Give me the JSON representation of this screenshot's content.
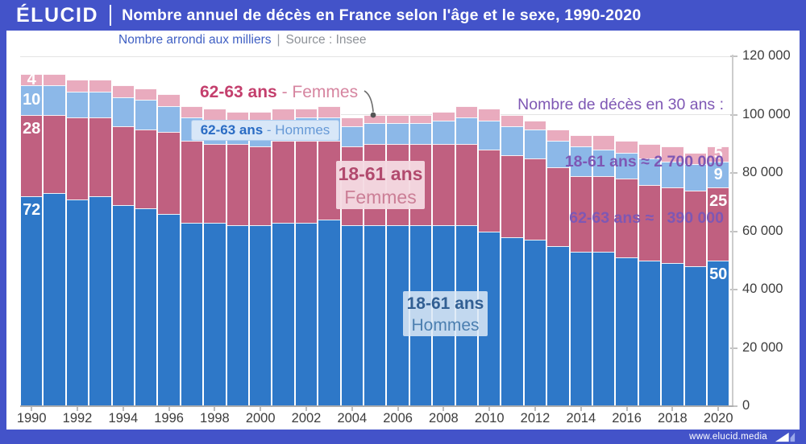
{
  "header": {
    "logo": "ÉLUCID",
    "title": "Nombre annuel de décès en France selon l'âge et le sexe, 1990-2020"
  },
  "subtitle": {
    "note": "Nombre arrondi aux milliers",
    "sep": "|",
    "source": "Source : Insee"
  },
  "labels": {
    "f6263_bold": "62-63 ans",
    "f6263_rest": " - Femmes",
    "h6263_bold": "62-63 ans",
    "h6263_rest": " - Hommes",
    "f1861_line1": "18-61 ans",
    "f1861_line2": "Femmes",
    "h1861_line1": "18-61 ans",
    "h1861_line2": "Hommes"
  },
  "annotation": {
    "line1": "Nombre de décès en 30 ans :",
    "line2": "18-61 ans ≈ 2 700 000",
    "line3": "62-63 ans ≈   390 000"
  },
  "footer": {
    "url": "www.elucid.media"
  },
  "colors": {
    "frame": "#4353c9",
    "hommes_18_61": "#2e78c8",
    "femmes_18_61": "#c06080",
    "hommes_62_63": "#8cb8e8",
    "femmes_62_63": "#e9abbe",
    "annotation_purple": "#7e57b4"
  },
  "chart_data": {
    "type": "bar",
    "stacked": true,
    "title": "Nombre annuel de décès en France selon l'âge et le sexe, 1990-2020",
    "values_unit": "milliers de décès",
    "x": [
      1990,
      1991,
      1992,
      1993,
      1994,
      1995,
      1996,
      1997,
      1998,
      1999,
      2000,
      2001,
      2002,
      2003,
      2004,
      2005,
      2006,
      2007,
      2008,
      2009,
      2010,
      2011,
      2012,
      2013,
      2014,
      2015,
      2016,
      2017,
      2018,
      2019,
      2020
    ],
    "series": [
      {
        "name": "18-61 ans - Hommes",
        "color": "#2e78c8",
        "values": [
          72,
          73,
          71,
          72,
          69,
          68,
          66,
          63,
          63,
          62,
          62,
          63,
          63,
          64,
          62,
          62,
          62,
          62,
          62,
          62,
          60,
          58,
          57,
          55,
          53,
          53,
          51,
          50,
          49,
          48,
          50
        ]
      },
      {
        "name": "18-61 ans - Femmes",
        "color": "#c06080",
        "values": [
          28,
          27,
          28,
          27,
          27,
          27,
          28,
          28,
          27,
          28,
          27,
          28,
          28,
          27,
          27,
          28,
          28,
          28,
          28,
          28,
          28,
          28,
          28,
          27,
          26,
          26,
          27,
          26,
          26,
          26,
          25
        ]
      },
      {
        "name": "62-63 ans - Hommes",
        "color": "#8cb8e8",
        "values": [
          10,
          10,
          9,
          9,
          10,
          10,
          9,
          8,
          8,
          8,
          8,
          7,
          8,
          8,
          7,
          7,
          7,
          7,
          8,
          9,
          10,
          10,
          10,
          9,
          10,
          9,
          9,
          9,
          9,
          9,
          9
        ]
      },
      {
        "name": "62-63 ans - Femmes",
        "color": "#e9abbe",
        "values": [
          4,
          4,
          4,
          4,
          4,
          4,
          4,
          4,
          4,
          3,
          4,
          4,
          3,
          4,
          3,
          3,
          3,
          3,
          3,
          4,
          4,
          4,
          3,
          4,
          4,
          5,
          4,
          5,
          5,
          4,
          5
        ]
      }
    ],
    "ylim_milliers": [
      0,
      120
    ],
    "yticks": [
      {
        "v": 120,
        "label": "120 000"
      },
      {
        "v": 100,
        "label": "100 000"
      },
      {
        "v": 80,
        "label": "80 000"
      },
      {
        "v": 60,
        "label": "60 000"
      },
      {
        "v": 40,
        "label": "40 000"
      },
      {
        "v": 20,
        "label": "20 000"
      },
      {
        "v": 0,
        "label": "0"
      }
    ],
    "xtick_years": [
      1990,
      1992,
      1994,
      1996,
      1998,
      2000,
      2002,
      2004,
      2006,
      2008,
      2010,
      2012,
      2014,
      2016,
      2018,
      2020
    ],
    "bar_value_labels": {
      "first_year": 1990,
      "first": [
        72,
        28,
        10,
        4
      ],
      "last_year": 2020,
      "last": [
        50,
        25,
        9,
        5
      ]
    }
  }
}
